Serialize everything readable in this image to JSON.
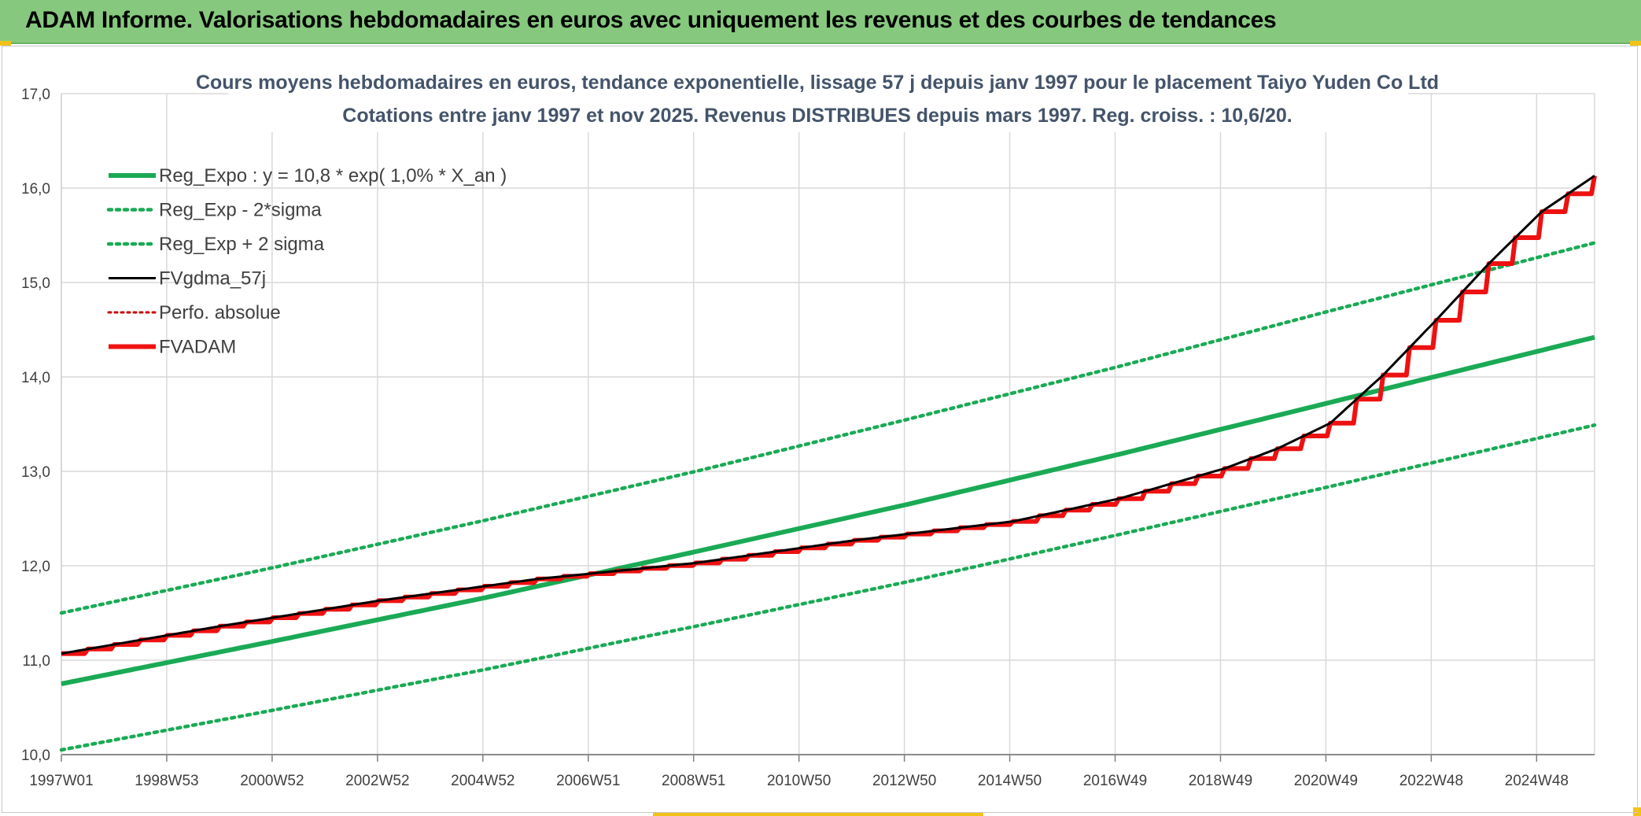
{
  "header": {
    "title": "ADAM Informe. Valorisations hebdomadaires en euros avec uniquement les revenus et des courbes de tendances"
  },
  "colors": {
    "banner": "#86c97e",
    "reg_expo": "#1aaa55",
    "fvgdma": "#000000",
    "fvadam": "#ee1111",
    "perfo": "#cc0000",
    "grid": "#d9d9d9"
  },
  "chart_data": {
    "type": "line",
    "title": "Cours moyens hebdomadaires en euros, tendance exponentielle, lissage 57 j depuis janv 1997 pour le placement Taiyo Yuden Co Ltd",
    "subtitle": "Cotations entre janv 1997 et nov 2025. Revenus DISTRIBUES depuis mars 1997. Reg. croiss. : 10,6/20.",
    "xlabel": "",
    "ylabel": "",
    "ylim": [
      10.0,
      17.0
    ],
    "y_ticks": [
      "10,0",
      "11,0",
      "12,0",
      "13,0",
      "14,0",
      "15,0",
      "16,0",
      "17,0"
    ],
    "x_ticks": [
      "1997W01",
      "1998W53",
      "2000W52",
      "2002W52",
      "2004W52",
      "2006W51",
      "2008W51",
      "2010W50",
      "2012W50",
      "2014W50",
      "2016W49",
      "2018W49",
      "2020W49",
      "2022W48",
      "2024W48"
    ],
    "x_range_years": [
      1997.0,
      2026.0
    ],
    "grid": true,
    "legend_position": "top-left",
    "series": [
      {
        "name": "Reg_Expo : y = 10,8 * exp( 1,0% *  X_an )",
        "style": "solid-thick",
        "x": [
          1997.0,
          2001.0,
          2005.0,
          2009.0,
          2013.0,
          2017.0,
          2021.0,
          2026.0
        ],
        "y": [
          10.75,
          11.2,
          11.66,
          12.15,
          12.65,
          13.18,
          13.73,
          14.42
        ]
      },
      {
        "name": "Reg_Exp - 2*sigma",
        "style": "dotted",
        "x": [
          1997.0,
          2001.0,
          2005.0,
          2009.0,
          2013.0,
          2017.0,
          2021.0,
          2026.0
        ],
        "y": [
          10.05,
          10.47,
          10.9,
          11.36,
          11.83,
          12.33,
          12.84,
          13.49
        ]
      },
      {
        "name": "Reg_Exp + 2 sigma",
        "style": "dotted",
        "x": [
          1997.0,
          2001.0,
          2005.0,
          2009.0,
          2013.0,
          2017.0,
          2021.0,
          2026.0
        ],
        "y": [
          11.5,
          11.98,
          12.48,
          13.0,
          13.55,
          14.11,
          14.7,
          15.42
        ]
      },
      {
        "name": "FVgdma_57j",
        "style": "solid-thin",
        "x": [
          1997.0,
          2000.0,
          2003.0,
          2006.0,
          2009.0,
          2012.0,
          2015.0,
          2017.0,
          2019.0,
          2020.0,
          2021.0,
          2022.0,
          2023.0,
          2024.0,
          2025.0,
          2026.0
        ],
        "y": [
          11.07,
          11.36,
          11.63,
          11.86,
          12.03,
          12.27,
          12.47,
          12.71,
          13.03,
          13.24,
          13.51,
          14.02,
          14.6,
          15.2,
          15.75,
          16.13
        ]
      },
      {
        "name": "Perfo. absolue",
        "style": "dotted-red",
        "x": [],
        "y": []
      },
      {
        "name": "FVADAM",
        "style": "solid-thick-stepped",
        "x": [
          1997.0,
          2000.0,
          2003.0,
          2006.0,
          2009.0,
          2012.0,
          2015.0,
          2017.0,
          2019.0,
          2020.0,
          2021.0,
          2022.0,
          2023.0,
          2024.0,
          2025.0,
          2026.0
        ],
        "y": [
          11.07,
          11.36,
          11.63,
          11.86,
          12.03,
          12.27,
          12.47,
          12.71,
          13.03,
          13.24,
          13.51,
          14.02,
          14.6,
          15.2,
          15.75,
          16.13
        ]
      }
    ]
  }
}
